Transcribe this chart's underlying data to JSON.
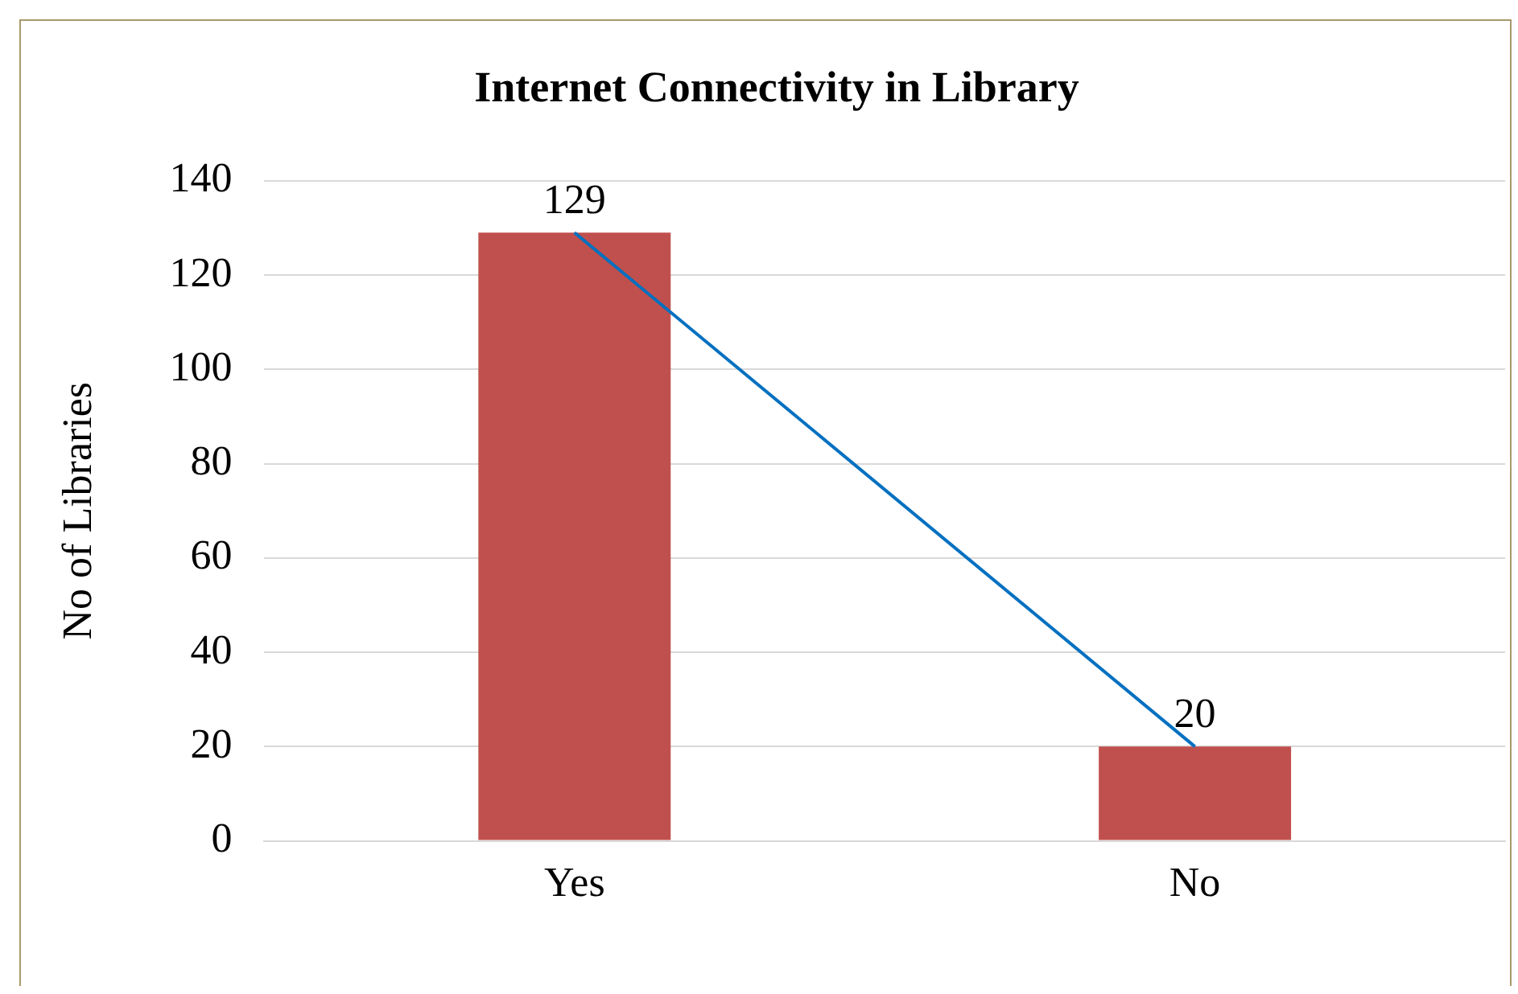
{
  "chart_data": {
    "type": "bar",
    "title": "Internet Connectivity in Library",
    "ylabel": "No of Libraries",
    "categories": [
      "Yes",
      "No"
    ],
    "series": [
      {
        "color": "#c0504d",
        "values": [
          129,
          20
        ],
        "value_labels": [
          "129",
          "20"
        ]
      },
      {
        "type": "line",
        "color": "#0070c0",
        "values": [
          129,
          20
        ]
      }
    ],
    "ylim": [
      0,
      140
    ],
    "yticks": [
      0,
      20,
      40,
      60,
      80,
      100,
      120,
      140
    ],
    "grid": "y",
    "legend": false
  }
}
